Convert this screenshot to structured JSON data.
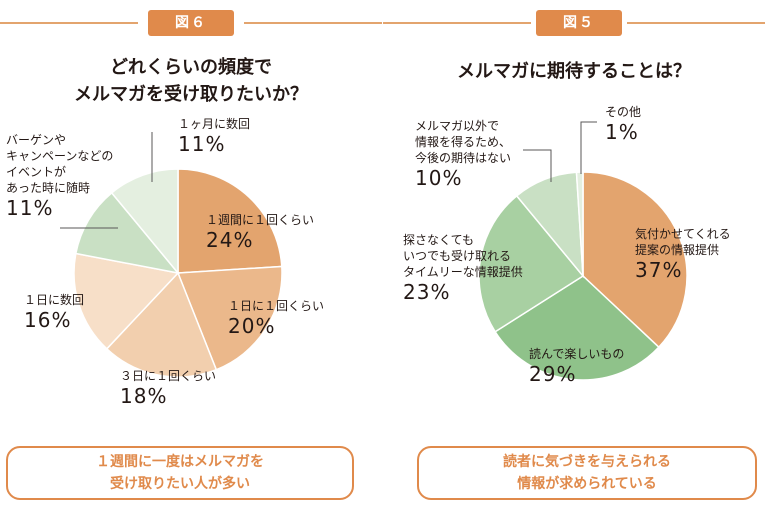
{
  "chart_data": [
    {
      "type": "pie",
      "tag": "図６",
      "title": [
        "どれくらいの頻度で",
        "メルマガを受け取りたいか？"
      ],
      "slices": [
        {
          "label": [
            "１週間に１回くらい"
          ],
          "value": 24,
          "pct_text": "24%",
          "color": "#e3a46e"
        },
        {
          "label": [
            "１日に１回くらい"
          ],
          "value": 20,
          "pct_text": "20%",
          "color": "#ebb88b"
        },
        {
          "label": [
            "３日に１回くらい"
          ],
          "value": 18,
          "pct_text": "18%",
          "color": "#f2cfae"
        },
        {
          "label": [
            "１日に数回"
          ],
          "value": 16,
          "pct_text": "16%",
          "color": "#f7dfc8"
        },
        {
          "label": [
            "バーゲンや",
            "キャンペーンなどの",
            "イベントが",
            "あった時に随時"
          ],
          "value": 11,
          "pct_text": "11%",
          "color": "#c9e0c4"
        },
        {
          "label": [
            "１ヶ月に数回"
          ],
          "value": 11,
          "pct_text": "11%",
          "color": "#e4efe0"
        }
      ],
      "callout": [
        "１週間に一度はメルマガを",
        "受け取りたい人が多い"
      ]
    },
    {
      "type": "pie",
      "tag": "図５",
      "title": [
        "メルマガに期待することは？"
      ],
      "slices": [
        {
          "label": [
            "気付かせてくれる",
            "提案の情報提供"
          ],
          "value": 37,
          "pct_text": "37%",
          "color": "#e3a46e"
        },
        {
          "label": [
            "読んで楽しいもの"
          ],
          "value": 29,
          "pct_text": "29%",
          "color": "#8fc28a"
        },
        {
          "label": [
            "探さなくても",
            "いつでも受け取れる",
            "タイムリーな情報提供"
          ],
          "value": 23,
          "pct_text": "23%",
          "color": "#a8d0a2"
        },
        {
          "label": [
            "メルマガ以外で",
            "情報を得るため、",
            "今後の期待はない"
          ],
          "value": 10,
          "pct_text": "10%",
          "color": "#c9e0c4"
        },
        {
          "label": [
            "その他"
          ],
          "value": 1,
          "pct_text": "1%",
          "color": "#e4efe0"
        }
      ],
      "callout": [
        "読者に気づきを与えられる",
        "情報が求められている"
      ]
    }
  ]
}
